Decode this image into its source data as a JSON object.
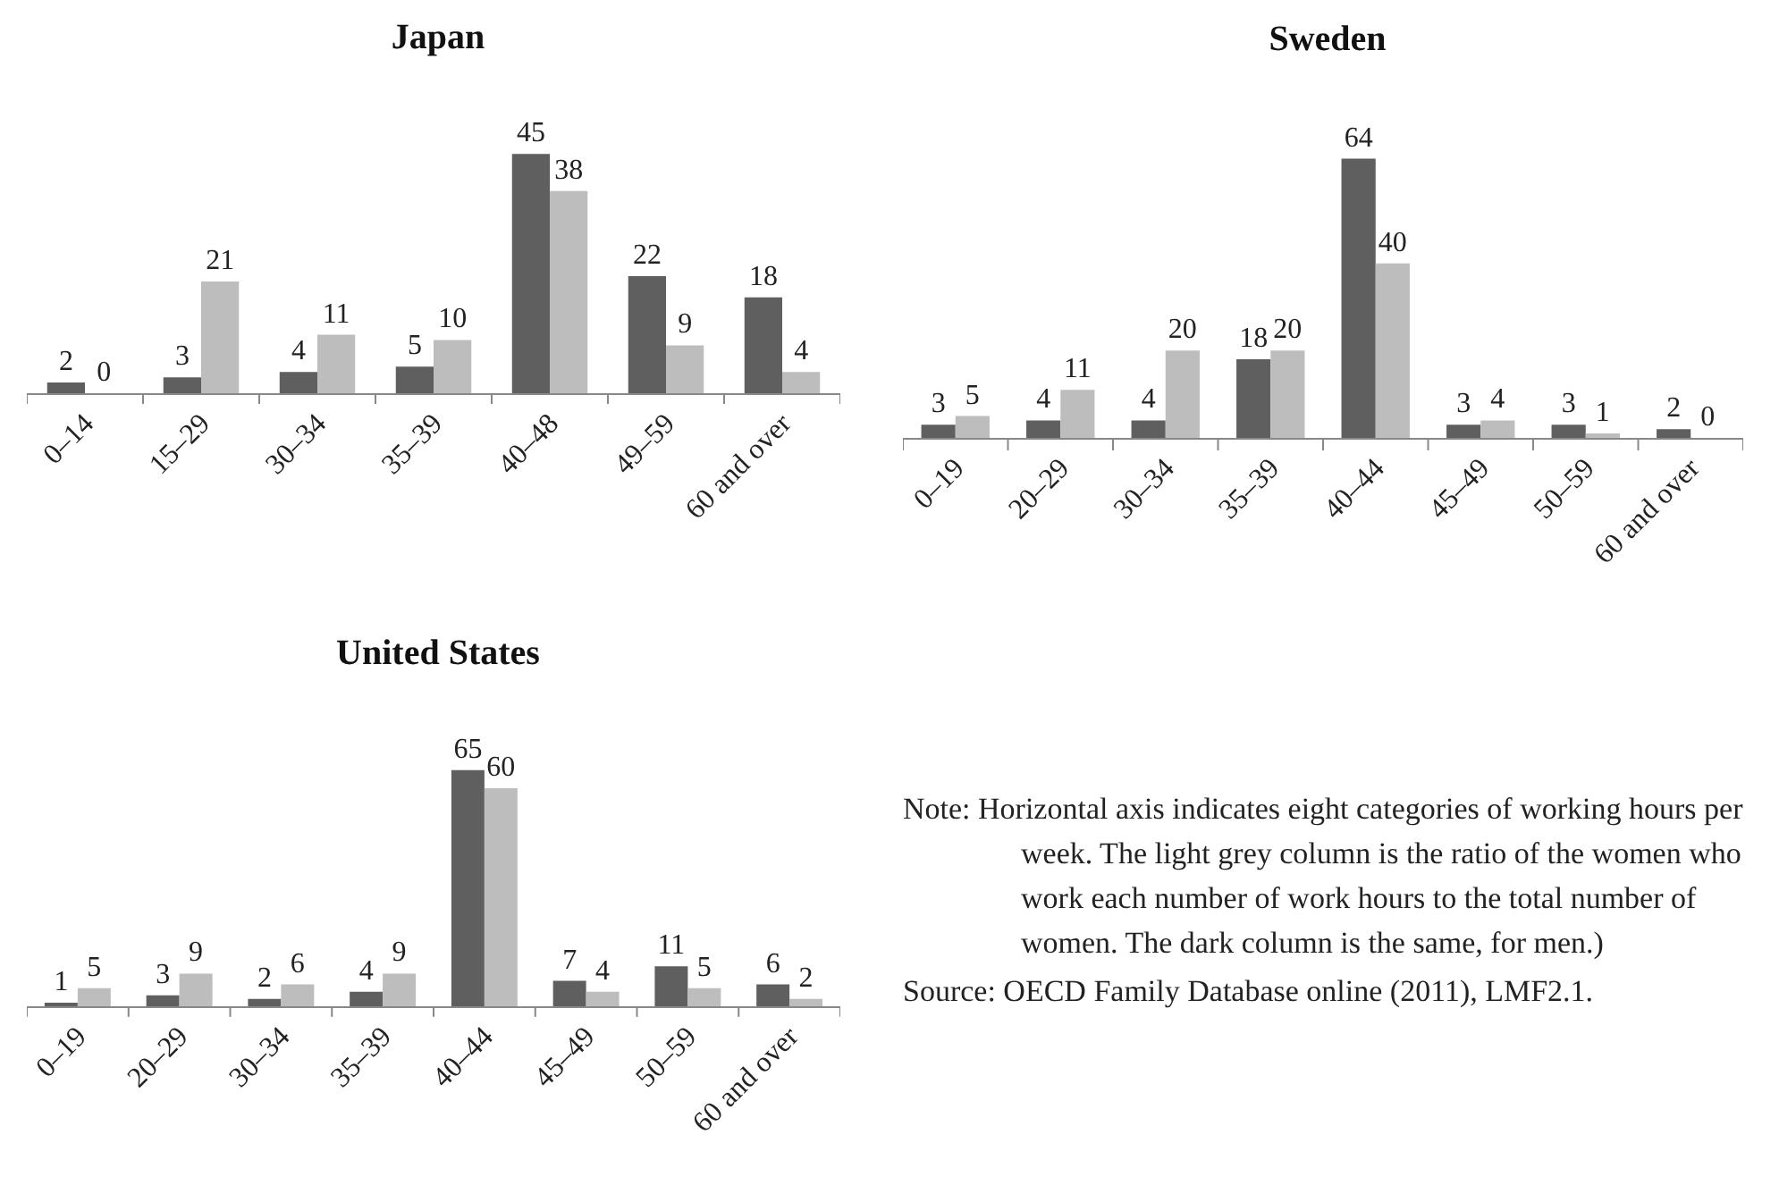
{
  "chart_data": [
    {
      "type": "bar",
      "title": "Japan",
      "categories": [
        "0–14",
        "15–29",
        "30–34",
        "35–39",
        "40–48",
        "49–59",
        "60 and over"
      ],
      "series": [
        {
          "color": "#5f5f5f",
          "values": [
            2,
            3,
            4,
            5,
            45,
            22,
            18
          ]
        },
        {
          "color": "#bdbdbd",
          "values": [
            0,
            21,
            11,
            10,
            38,
            9,
            4
          ]
        }
      ],
      "data_labels": true,
      "grid": false
    },
    {
      "type": "bar",
      "title": "Sweden",
      "categories": [
        "0–19",
        "20–29",
        "30–34",
        "35–39",
        "40–44",
        "45–49",
        "50–59",
        "60 and over"
      ],
      "series": [
        {
          "color": "#5f5f5f",
          "values": [
            3,
            4,
            4,
            18,
            64,
            3,
            3,
            2
          ]
        },
        {
          "color": "#bdbdbd",
          "values": [
            5,
            11,
            20,
            20,
            40,
            4,
            1,
            0
          ]
        }
      ],
      "data_labels": true,
      "grid": false
    },
    {
      "type": "bar",
      "title": "United States",
      "categories": [
        "0–19",
        "20–29",
        "30–34",
        "35–39",
        "40–44",
        "45–49",
        "50–59",
        "60 and over"
      ],
      "series": [
        {
          "color": "#5f5f5f",
          "values": [
            1,
            3,
            2,
            4,
            65,
            7,
            11,
            6
          ]
        },
        {
          "color": "#bdbdbd",
          "values": [
            5,
            9,
            6,
            9,
            60,
            4,
            5,
            2
          ]
        }
      ],
      "data_labels": true,
      "grid": false
    },
    {
      "type": "other",
      "annotations": [
        "Note: Horizontal axis indicates eight categories of working hours per week. The light grey column is the ratio of the women who work each number of work hours to the total number of women. The dark column is the same, for men.)",
        "Source: OECD Family Database online (2011), LMF2.1."
      ]
    }
  ]
}
